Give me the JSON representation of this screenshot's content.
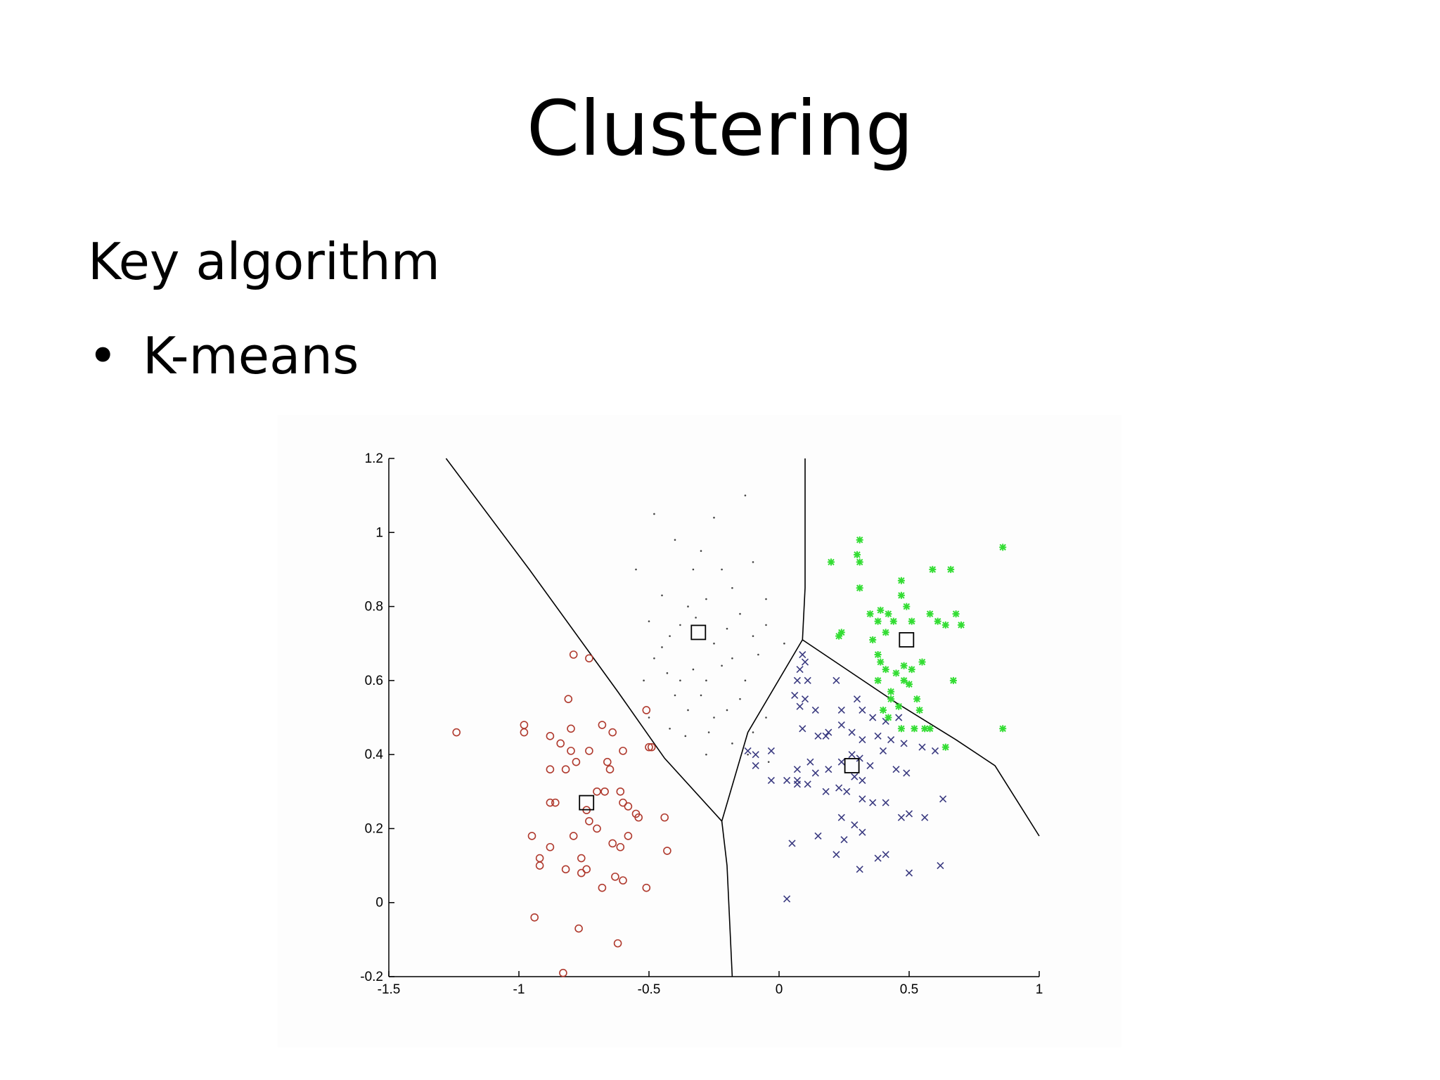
{
  "slide": {
    "title": "Clustering",
    "subtitle": "Key algorithm",
    "bullets": [
      "K-means"
    ]
  },
  "chart_data": {
    "type": "scatter",
    "xlim": [
      -1.5,
      1
    ],
    "ylim": [
      -0.2,
      1.2
    ],
    "xticks": [
      "-1.5",
      "-1",
      "-0.5",
      "0",
      "0.5",
      "1"
    ],
    "yticks": [
      "-0.2",
      "0",
      "0.2",
      "0.4",
      "0.6",
      "0.8",
      "1",
      "1.2"
    ],
    "xtick_values": [
      -1.5,
      -1,
      -0.5,
      0,
      0.5,
      1
    ],
    "ytick_values": [
      -0.2,
      0,
      0.2,
      0.4,
      0.6,
      0.8,
      1,
      1.2
    ],
    "grid": false,
    "boundaries": [
      [
        [
          -1.28,
          1.2
        ],
        [
          -0.96,
          0.9
        ],
        [
          -0.62,
          0.57
        ],
        [
          -0.44,
          0.39
        ],
        [
          -0.22,
          0.22
        ]
      ],
      [
        [
          -0.22,
          0.22
        ],
        [
          -0.2,
          0.1
        ],
        [
          -0.19,
          -0.05
        ],
        [
          -0.18,
          -0.2
        ]
      ],
      [
        [
          -0.22,
          0.22
        ],
        [
          -0.12,
          0.46
        ],
        [
          0.09,
          0.71
        ]
      ],
      [
        [
          0.1,
          1.2
        ],
        [
          0.1,
          0.85
        ],
        [
          0.09,
          0.71
        ]
      ],
      [
        [
          0.09,
          0.71
        ],
        [
          0.45,
          0.54
        ],
        [
          0.68,
          0.44
        ],
        [
          0.83,
          0.37
        ],
        [
          1,
          0.18
        ]
      ]
    ],
    "series": [
      {
        "marker": "circle",
        "color": "#b03a2e",
        "points": [
          [
            -1.24,
            0.46
          ],
          [
            -0.98,
            0.48
          ],
          [
            -0.98,
            0.46
          ],
          [
            -0.88,
            0.45
          ],
          [
            -0.84,
            0.43
          ],
          [
            -0.81,
            0.55
          ],
          [
            -0.8,
            0.47
          ],
          [
            -0.8,
            0.41
          ],
          [
            -0.78,
            0.38
          ],
          [
            -0.88,
            0.36
          ],
          [
            -0.82,
            0.36
          ],
          [
            -0.73,
            0.41
          ],
          [
            -0.68,
            0.48
          ],
          [
            -0.64,
            0.46
          ],
          [
            -0.6,
            0.41
          ],
          [
            -0.5,
            0.42
          ],
          [
            -0.49,
            0.42
          ],
          [
            -0.51,
            0.52
          ],
          [
            -0.65,
            0.36
          ],
          [
            -0.66,
            0.38
          ],
          [
            -0.79,
            0.67
          ],
          [
            -0.73,
            0.66
          ],
          [
            -0.88,
            0.27
          ],
          [
            -0.86,
            0.27
          ],
          [
            -0.74,
            0.25
          ],
          [
            -0.73,
            0.22
          ],
          [
            -0.7,
            0.3
          ],
          [
            -0.67,
            0.3
          ],
          [
            -0.6,
            0.27
          ],
          [
            -0.61,
            0.3
          ],
          [
            -0.58,
            0.26
          ],
          [
            -0.55,
            0.24
          ],
          [
            -0.95,
            0.18
          ],
          [
            -0.92,
            0.12
          ],
          [
            -0.92,
            0.1
          ],
          [
            -0.88,
            0.15
          ],
          [
            -0.82,
            0.09
          ],
          [
            -0.79,
            0.18
          ],
          [
            -0.76,
            0.12
          ],
          [
            -0.74,
            0.09
          ],
          [
            -0.76,
            0.08
          ],
          [
            -0.7,
            0.2
          ],
          [
            -0.64,
            0.16
          ],
          [
            -0.61,
            0.15
          ],
          [
            -0.58,
            0.18
          ],
          [
            -0.54,
            0.23
          ],
          [
            -0.44,
            0.23
          ],
          [
            -0.43,
            0.14
          ],
          [
            -0.68,
            0.04
          ],
          [
            -0.63,
            0.07
          ],
          [
            -0.6,
            0.06
          ],
          [
            -0.51,
            0.04
          ],
          [
            -0.94,
            -0.04
          ],
          [
            -0.77,
            -0.07
          ],
          [
            -0.62,
            -0.11
          ],
          [
            -0.83,
            -0.19
          ]
        ]
      },
      {
        "marker": "dot",
        "color": "#444444",
        "points": [
          [
            -0.48,
            1.05
          ],
          [
            -0.3,
            0.95
          ],
          [
            -0.13,
            1.1
          ],
          [
            -0.33,
            0.9
          ],
          [
            -0.25,
            1.04
          ],
          [
            -0.45,
            0.83
          ],
          [
            -0.35,
            0.8
          ],
          [
            -0.28,
            0.82
          ],
          [
            -0.18,
            0.85
          ],
          [
            -0.5,
            0.76
          ],
          [
            -0.42,
            0.72
          ],
          [
            -0.38,
            0.75
          ],
          [
            -0.32,
            0.77
          ],
          [
            -0.25,
            0.7
          ],
          [
            -0.2,
            0.74
          ],
          [
            -0.15,
            0.78
          ],
          [
            -0.1,
            0.72
          ],
          [
            -0.05,
            0.75
          ],
          [
            -0.48,
            0.66
          ],
          [
            -0.43,
            0.62
          ],
          [
            -0.38,
            0.6
          ],
          [
            -0.33,
            0.63
          ],
          [
            -0.28,
            0.6
          ],
          [
            -0.22,
            0.64
          ],
          [
            -0.18,
            0.66
          ],
          [
            -0.13,
            0.6
          ],
          [
            -0.08,
            0.67
          ],
          [
            -0.52,
            0.6
          ],
          [
            -0.4,
            0.56
          ],
          [
            -0.35,
            0.52
          ],
          [
            -0.3,
            0.56
          ],
          [
            -0.25,
            0.5
          ],
          [
            -0.2,
            0.52
          ],
          [
            -0.15,
            0.55
          ],
          [
            -0.1,
            0.46
          ],
          [
            -0.05,
            0.5
          ],
          [
            -0.42,
            0.47
          ],
          [
            -0.36,
            0.45
          ],
          [
            -0.27,
            0.46
          ],
          [
            -0.18,
            0.43
          ],
          [
            -0.12,
            0.4
          ],
          [
            -0.04,
            0.38
          ],
          [
            -0.45,
            0.69
          ],
          [
            -0.22,
            0.9
          ],
          [
            -0.05,
            0.82
          ],
          [
            0.02,
            0.7
          ],
          [
            -0.55,
            0.9
          ],
          [
            -0.4,
            0.98
          ],
          [
            -0.1,
            0.92
          ],
          [
            -0.28,
            0.4
          ],
          [
            -0.5,
            0.5
          ]
        ]
      },
      {
        "marker": "x",
        "color": "#3a3a80",
        "points": [
          [
            0.09,
            0.67
          ],
          [
            0.1,
            0.65
          ],
          [
            0.08,
            0.63
          ],
          [
            0.11,
            0.6
          ],
          [
            0.07,
            0.6
          ],
          [
            0.06,
            0.56
          ],
          [
            0.1,
            0.55
          ],
          [
            0.08,
            0.53
          ],
          [
            0.14,
            0.52
          ],
          [
            0.22,
            0.6
          ],
          [
            0.3,
            0.55
          ],
          [
            0.32,
            0.52
          ],
          [
            0.36,
            0.5
          ],
          [
            0.41,
            0.49
          ],
          [
            0.46,
            0.5
          ],
          [
            0.09,
            0.47
          ],
          [
            0.15,
            0.45
          ],
          [
            0.19,
            0.46
          ],
          [
            0.24,
            0.48
          ],
          [
            0.28,
            0.46
          ],
          [
            0.32,
            0.44
          ],
          [
            0.38,
            0.45
          ],
          [
            0.43,
            0.44
          ],
          [
            0.48,
            0.43
          ],
          [
            0.55,
            0.42
          ],
          [
            0.6,
            0.41
          ],
          [
            -0.12,
            0.41
          ],
          [
            -0.09,
            0.4
          ],
          [
            -0.03,
            0.41
          ],
          [
            -0.09,
            0.37
          ],
          [
            0.07,
            0.36
          ],
          [
            0.12,
            0.38
          ],
          [
            0.14,
            0.35
          ],
          [
            0.19,
            0.36
          ],
          [
            0.24,
            0.38
          ],
          [
            0.28,
            0.4
          ],
          [
            0.31,
            0.39
          ],
          [
            0.35,
            0.37
          ],
          [
            0.4,
            0.41
          ],
          [
            0.45,
            0.36
          ],
          [
            0.49,
            0.35
          ],
          [
            -0.03,
            0.33
          ],
          [
            0.03,
            0.33
          ],
          [
            0.07,
            0.32
          ],
          [
            0.11,
            0.32
          ],
          [
            0.18,
            0.3
          ],
          [
            0.23,
            0.31
          ],
          [
            0.26,
            0.3
          ],
          [
            0.32,
            0.28
          ],
          [
            0.36,
            0.27
          ],
          [
            0.41,
            0.27
          ],
          [
            0.47,
            0.23
          ],
          [
            0.5,
            0.24
          ],
          [
            0.56,
            0.23
          ],
          [
            0.63,
            0.28
          ],
          [
            0.24,
            0.23
          ],
          [
            0.29,
            0.21
          ],
          [
            0.32,
            0.19
          ],
          [
            0.25,
            0.17
          ],
          [
            0.15,
            0.18
          ],
          [
            0.05,
            0.16
          ],
          [
            0.22,
            0.13
          ],
          [
            0.38,
            0.12
          ],
          [
            0.41,
            0.13
          ],
          [
            0.31,
            0.09
          ],
          [
            0.5,
            0.08
          ],
          [
            0.62,
            0.1
          ],
          [
            0.03,
            0.01
          ],
          [
            0.24,
            0.52
          ],
          [
            0.18,
            0.45
          ],
          [
            0.07,
            0.33
          ],
          [
            0.32,
            0.33
          ],
          [
            0.29,
            0.34
          ]
        ]
      },
      {
        "marker": "star",
        "color": "#33dd33",
        "points": [
          [
            0.31,
            0.98
          ],
          [
            0.3,
            0.94
          ],
          [
            0.31,
            0.92
          ],
          [
            0.2,
            0.92
          ],
          [
            0.31,
            0.85
          ],
          [
            0.47,
            0.87
          ],
          [
            0.59,
            0.9
          ],
          [
            0.66,
            0.9
          ],
          [
            0.86,
            0.96
          ],
          [
            0.47,
            0.83
          ],
          [
            0.49,
            0.8
          ],
          [
            0.35,
            0.78
          ],
          [
            0.38,
            0.76
          ],
          [
            0.39,
            0.79
          ],
          [
            0.42,
            0.78
          ],
          [
            0.44,
            0.76
          ],
          [
            0.51,
            0.76
          ],
          [
            0.58,
            0.78
          ],
          [
            0.61,
            0.76
          ],
          [
            0.64,
            0.75
          ],
          [
            0.68,
            0.78
          ],
          [
            0.7,
            0.75
          ],
          [
            0.23,
            0.72
          ],
          [
            0.24,
            0.73
          ],
          [
            0.36,
            0.71
          ],
          [
            0.41,
            0.73
          ],
          [
            0.38,
            0.67
          ],
          [
            0.39,
            0.65
          ],
          [
            0.41,
            0.63
          ],
          [
            0.45,
            0.62
          ],
          [
            0.48,
            0.64
          ],
          [
            0.51,
            0.63
          ],
          [
            0.55,
            0.65
          ],
          [
            0.48,
            0.6
          ],
          [
            0.5,
            0.59
          ],
          [
            0.38,
            0.6
          ],
          [
            0.43,
            0.57
          ],
          [
            0.46,
            0.53
          ],
          [
            0.53,
            0.55
          ],
          [
            0.67,
            0.6
          ],
          [
            0.42,
            0.5
          ],
          [
            0.47,
            0.47
          ],
          [
            0.52,
            0.47
          ],
          [
            0.56,
            0.47
          ],
          [
            0.58,
            0.47
          ],
          [
            0.64,
            0.42
          ],
          [
            0.86,
            0.47
          ],
          [
            0.54,
            0.52
          ],
          [
            0.43,
            0.55
          ],
          [
            0.4,
            0.52
          ]
        ]
      }
    ],
    "centroids": [
      [
        -0.74,
        0.27
      ],
      [
        -0.31,
        0.73
      ],
      [
        0.28,
        0.37
      ],
      [
        0.49,
        0.71
      ]
    ]
  }
}
